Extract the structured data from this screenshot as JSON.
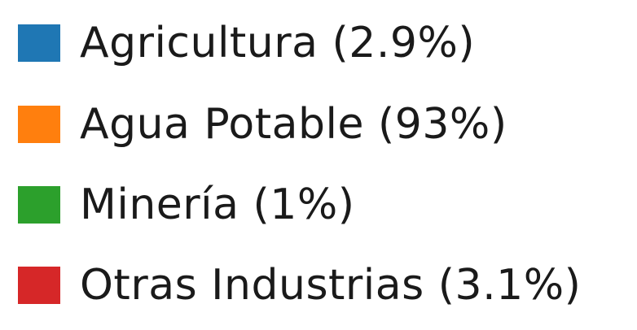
{
  "chart_data": {
    "type": "pie",
    "legend_placement": "full-frame",
    "series": [
      {
        "name": "Agricultura",
        "value": 2.9,
        "label": "Agricultura (2.9%)",
        "color": "#1f77b4"
      },
      {
        "name": "Agua Potable",
        "value": 93,
        "label": "Agua Potable (93%)",
        "color": "#ff7f0e"
      },
      {
        "name": "Minería",
        "value": 1,
        "label": "Minería (1%)",
        "color": "#2ca02c"
      },
      {
        "name": "Otras Industrias",
        "value": 3.1,
        "label": "Otras Industrias (3.1%)",
        "color": "#d62728"
      }
    ]
  }
}
